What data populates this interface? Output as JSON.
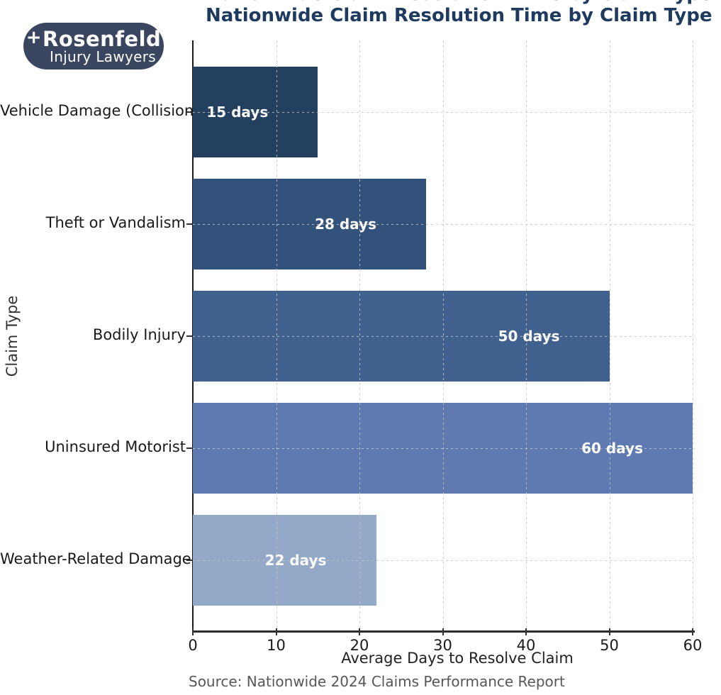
{
  "logo": {
    "plus_symbol": "+",
    "brand_name": "Rosenfeld",
    "brand_subtitle": "Injury Lawyers",
    "bg_color": "#3a4660",
    "text_color": "#ffffff"
  },
  "chart_data": {
    "type": "bar",
    "orientation": "horizontal",
    "title": "Nationwide Claim Resolution Time by Claim Type",
    "title_color": "#1e3a5f",
    "xlabel": "Average Days to Resolve Claim",
    "ylabel": "Claim Type",
    "source": "Source: Nationwide 2024 Claims Performance Report",
    "categories": [
      "Vehicle Damage (Collision)",
      "Theft or Vandalism",
      "Bodily Injury",
      "Uninsured Motorist",
      "Weather-Related Damage"
    ],
    "values": [
      15,
      28,
      50,
      60,
      22
    ],
    "value_labels": [
      "15 days",
      "28 days",
      "50 days",
      "60 days",
      "22 days"
    ],
    "bar_colors": [
      "#24405f",
      "#32517b",
      "#40608e",
      "#5e7ab0",
      "#93a9c7"
    ],
    "xlim": [
      0,
      60
    ],
    "xticks": [
      0,
      10,
      20,
      30,
      40,
      50,
      60
    ],
    "grid": "dashed, drawn over bars",
    "legend": "none"
  }
}
